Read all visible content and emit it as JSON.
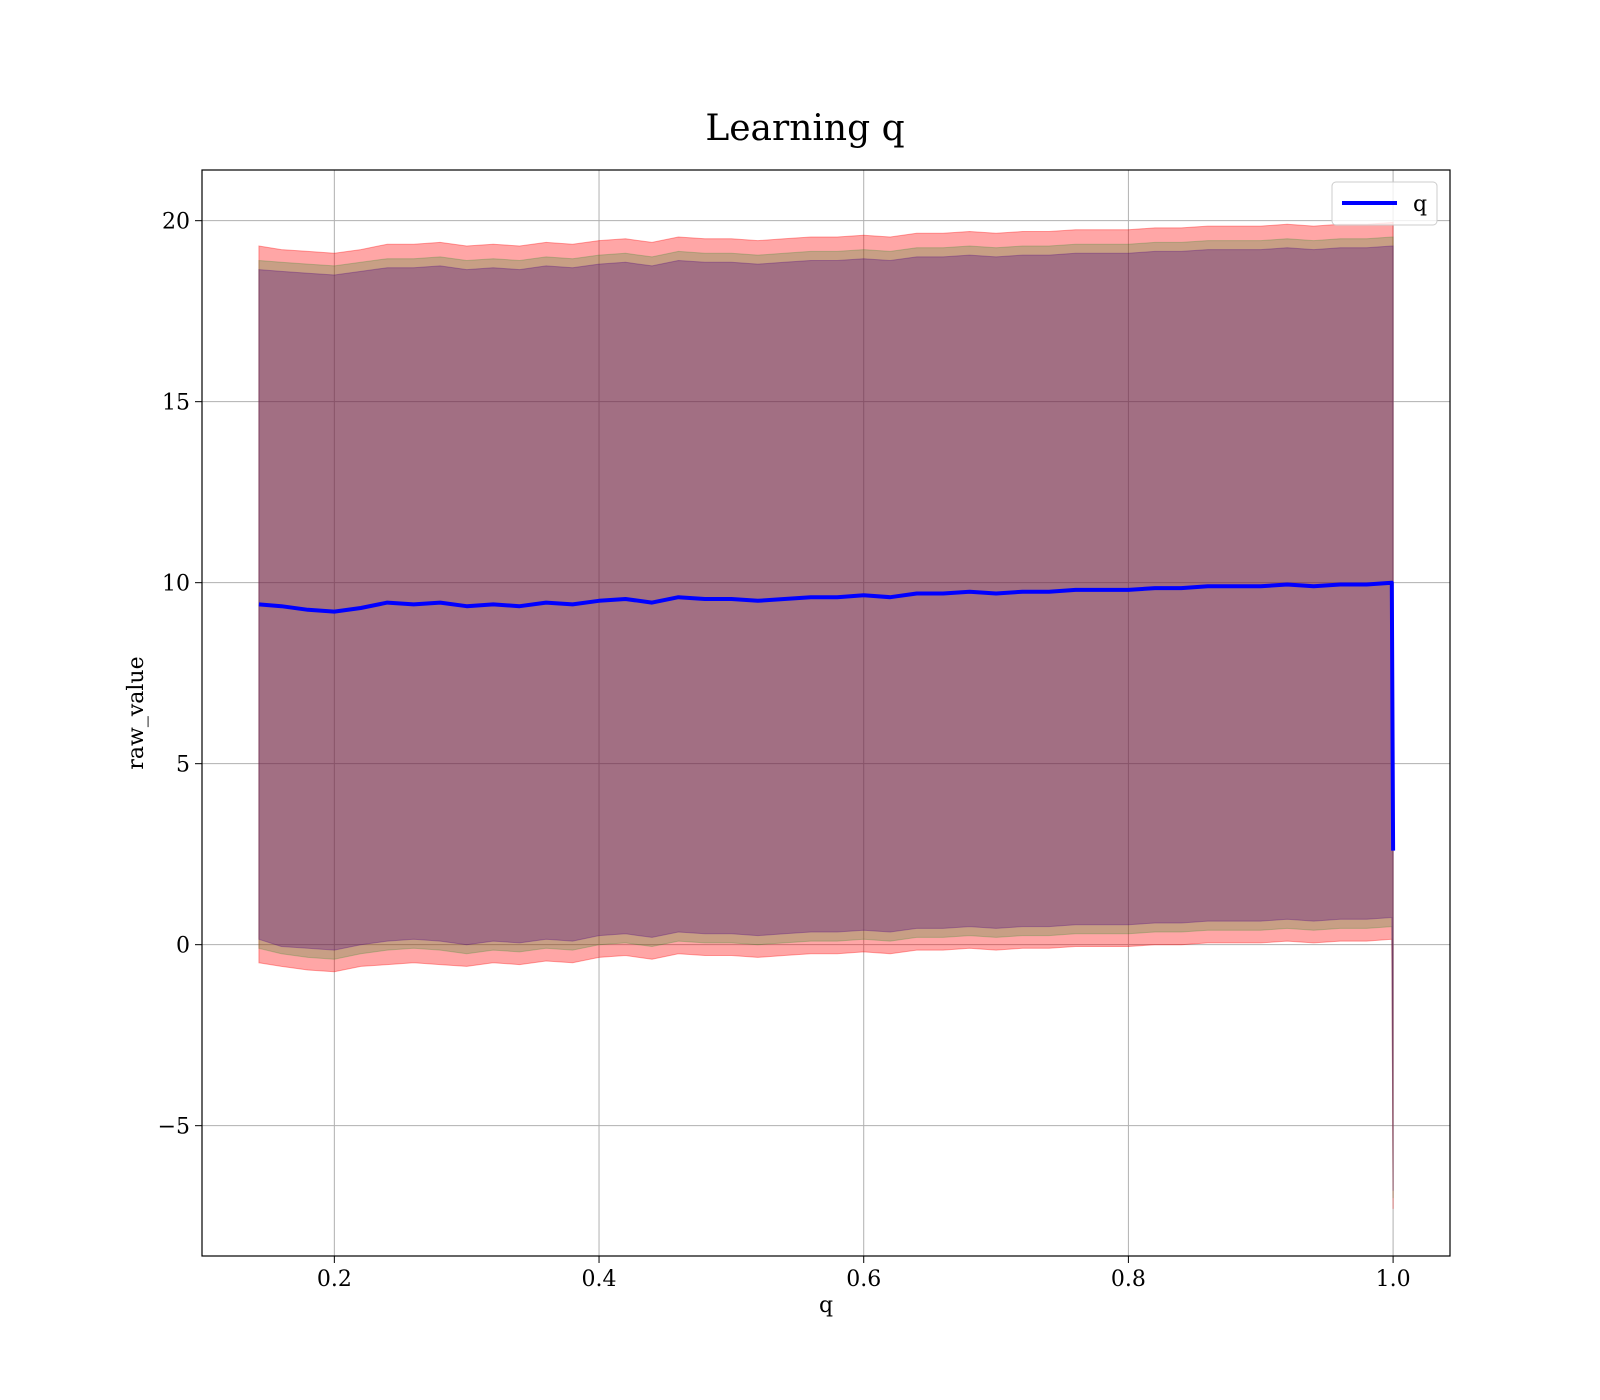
{
  "chart_data": {
    "type": "area",
    "title": "Learning q",
    "xlabel": "q",
    "ylabel": "raw_value",
    "xlim": [
      0.1,
      1.043
    ],
    "ylim": [
      -8.6,
      21.4
    ],
    "xticks": [
      0.2,
      0.4,
      0.6,
      0.8,
      1.0
    ],
    "xtick_labels": [
      "0.2",
      "0.4",
      "0.6",
      "0.8",
      "1.0"
    ],
    "yticks": [
      -5,
      0,
      5,
      10,
      15,
      20
    ],
    "ytick_labels": [
      "−5",
      "0",
      "5",
      "10",
      "15",
      "20"
    ],
    "grid": true,
    "legend_position": "top-right",
    "series": [
      {
        "name": "q",
        "color": "#0000ff",
        "x": [
          0.143,
          0.16,
          0.18,
          0.2,
          0.22,
          0.24,
          0.26,
          0.28,
          0.3,
          0.32,
          0.34,
          0.36,
          0.38,
          0.4,
          0.42,
          0.44,
          0.46,
          0.48,
          0.5,
          0.52,
          0.54,
          0.56,
          0.58,
          0.6,
          0.62,
          0.64,
          0.66,
          0.68,
          0.7,
          0.72,
          0.74,
          0.76,
          0.78,
          0.8,
          0.82,
          0.84,
          0.86,
          0.88,
          0.9,
          0.92,
          0.94,
          0.96,
          0.98,
          0.999,
          1.0
        ],
        "y": [
          9.4,
          9.35,
          9.25,
          9.2,
          9.3,
          9.45,
          9.4,
          9.45,
          9.35,
          9.4,
          9.35,
          9.45,
          9.4,
          9.5,
          9.55,
          9.45,
          9.6,
          9.55,
          9.55,
          9.5,
          9.55,
          9.6,
          9.6,
          9.65,
          9.6,
          9.7,
          9.7,
          9.75,
          9.7,
          9.75,
          9.75,
          9.8,
          9.8,
          9.8,
          9.85,
          9.85,
          9.9,
          9.9,
          9.9,
          9.95,
          9.9,
          9.95,
          9.95,
          10.0,
          2.6
        ]
      }
    ],
    "bands": [
      {
        "color": "#ff0000",
        "opacity": 0.35,
        "lower": [
          -0.5,
          -0.6,
          -0.7,
          -0.75,
          -0.6,
          -0.55,
          -0.5,
          -0.55,
          -0.6,
          -0.5,
          -0.55,
          -0.45,
          -0.5,
          -0.35,
          -0.3,
          -0.4,
          -0.25,
          -0.3,
          -0.3,
          -0.35,
          -0.3,
          -0.25,
          -0.25,
          -0.2,
          -0.25,
          -0.15,
          -0.15,
          -0.1,
          -0.15,
          -0.1,
          -0.1,
          -0.05,
          -0.05,
          -0.05,
          0.0,
          0.0,
          0.05,
          0.05,
          0.05,
          0.1,
          0.05,
          0.1,
          0.1,
          0.15,
          -7.3
        ],
        "upper": [
          19.3,
          19.2,
          19.15,
          19.1,
          19.2,
          19.35,
          19.35,
          19.4,
          19.3,
          19.35,
          19.3,
          19.4,
          19.35,
          19.45,
          19.5,
          19.4,
          19.55,
          19.5,
          19.5,
          19.45,
          19.5,
          19.55,
          19.55,
          19.6,
          19.55,
          19.65,
          19.65,
          19.7,
          19.65,
          19.7,
          19.7,
          19.75,
          19.75,
          19.75,
          19.8,
          19.8,
          19.85,
          19.85,
          19.85,
          19.9,
          19.85,
          19.9,
          19.9,
          19.95,
          19.95
        ]
      },
      {
        "color": "#228b22",
        "opacity": 0.25,
        "lower": [
          -0.1,
          -0.25,
          -0.35,
          -0.4,
          -0.25,
          -0.15,
          -0.1,
          -0.15,
          -0.25,
          -0.15,
          -0.2,
          -0.1,
          -0.15,
          0.0,
          0.05,
          -0.05,
          0.1,
          0.05,
          0.05,
          0.0,
          0.05,
          0.1,
          0.1,
          0.15,
          0.1,
          0.2,
          0.2,
          0.25,
          0.2,
          0.25,
          0.25,
          0.3,
          0.3,
          0.3,
          0.35,
          0.35,
          0.4,
          0.4,
          0.4,
          0.45,
          0.4,
          0.45,
          0.45,
          0.5,
          -7.0
        ],
        "upper": [
          18.9,
          18.85,
          18.8,
          18.75,
          18.85,
          18.95,
          18.95,
          19.0,
          18.9,
          18.95,
          18.9,
          19.0,
          18.95,
          19.05,
          19.1,
          19.0,
          19.15,
          19.1,
          19.1,
          19.05,
          19.1,
          19.15,
          19.15,
          19.2,
          19.15,
          19.25,
          19.25,
          19.3,
          19.25,
          19.3,
          19.3,
          19.35,
          19.35,
          19.35,
          19.4,
          19.4,
          19.45,
          19.45,
          19.45,
          19.5,
          19.45,
          19.5,
          19.5,
          19.55,
          19.55
        ]
      },
      {
        "color": "#4b0082",
        "opacity": 0.3,
        "lower": [
          0.15,
          -0.05,
          -0.1,
          -0.15,
          0.0,
          0.1,
          0.15,
          0.1,
          0.0,
          0.1,
          0.05,
          0.15,
          0.1,
          0.25,
          0.3,
          0.2,
          0.35,
          0.3,
          0.3,
          0.25,
          0.3,
          0.35,
          0.35,
          0.4,
          0.35,
          0.45,
          0.45,
          0.5,
          0.45,
          0.5,
          0.5,
          0.55,
          0.55,
          0.55,
          0.6,
          0.6,
          0.65,
          0.65,
          0.65,
          0.7,
          0.65,
          0.7,
          0.7,
          0.75,
          -6.8
        ],
        "upper": [
          18.65,
          18.6,
          18.55,
          18.5,
          18.6,
          18.7,
          18.7,
          18.75,
          18.65,
          18.7,
          18.65,
          18.75,
          18.7,
          18.8,
          18.85,
          18.75,
          18.9,
          18.85,
          18.85,
          18.8,
          18.85,
          18.9,
          18.9,
          18.95,
          18.9,
          19.0,
          19.0,
          19.05,
          19.0,
          19.05,
          19.05,
          19.1,
          19.1,
          19.1,
          19.15,
          19.15,
          19.2,
          19.2,
          19.2,
          19.25,
          19.2,
          19.25,
          19.25,
          19.3,
          19.3
        ]
      }
    ]
  }
}
